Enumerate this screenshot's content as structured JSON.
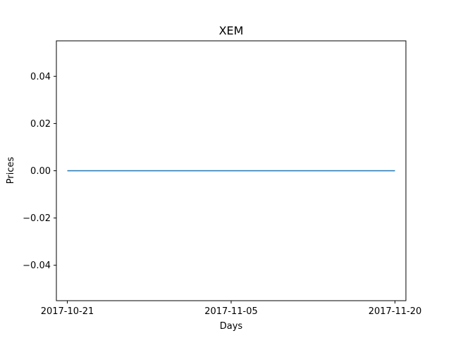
{
  "chart_data": {
    "type": "line",
    "title": "XEM",
    "xlabel": "Days",
    "ylabel": "Prices",
    "x": [
      "2017-10-21",
      "2017-11-20"
    ],
    "series": [
      {
        "values": [
          0,
          0
        ],
        "color": "#1f77b4"
      }
    ],
    "x_ticks": [
      "2017-10-21",
      "2017-11-05",
      "2017-11-20"
    ],
    "y_ticks": [
      -0.04,
      -0.02,
      0.0,
      0.02,
      0.04
    ],
    "y_tick_labels": [
      "−0.04",
      "−0.02",
      "0.00",
      "0.02",
      "0.04"
    ],
    "xlim": [
      "2017-10-20",
      "2017-11-21"
    ],
    "ylim": [
      -0.055,
      0.055
    ],
    "grid": false,
    "legend": false
  }
}
